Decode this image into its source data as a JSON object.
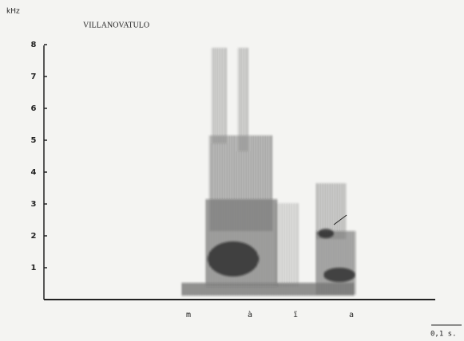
{
  "chart_data": {
    "type": "spectrogram",
    "title": "VILLANOVATULO",
    "ylabel": "kHz",
    "ylim": [
      0,
      8
    ],
    "yticks": [
      1,
      2,
      3,
      4,
      5,
      6,
      7,
      8
    ],
    "segments": [
      "m",
      "à",
      "ĩ",
      "a"
    ],
    "scale_label": "0,1 s."
  }
}
